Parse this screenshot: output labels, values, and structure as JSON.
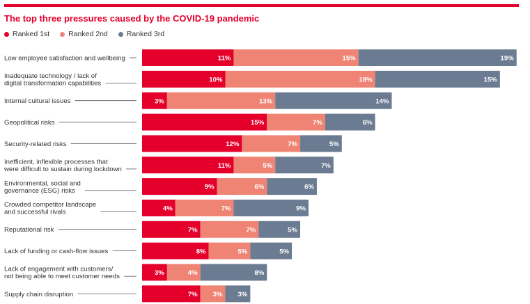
{
  "title": "The top three pressures caused by the COVID-19 pandemic",
  "colors": {
    "accent": "#e4002b"
  },
  "chart_data": {
    "type": "bar",
    "orientation": "horizontal",
    "stacked": true,
    "title": "The top three pressures caused by the COVID-19 pandemic",
    "legend_position": "top-left",
    "grid": false,
    "categories": [
      [
        "Low employee satisfaction and wellbeing"
      ],
      [
        "Inadequate technology / lack of",
        "digital transformation capabilities"
      ],
      [
        "Internal cultural issues"
      ],
      [
        "Geopolitical risks"
      ],
      [
        "Security-related risks"
      ],
      [
        "Inefficient, inflexible processes that",
        "were difficult to sustain during lockdown"
      ],
      [
        "Environmental, social and",
        "governance (ESG) risks"
      ],
      [
        "Crowded competitor landscape",
        "and successful rivals"
      ],
      [
        "Reputational risk"
      ],
      [
        "Lack of funding or cash-flow issues"
      ],
      [
        "Lack of engagement with customers/",
        "not being able to meet customer needs"
      ],
      [
        "Supply chain disruption"
      ]
    ],
    "series": [
      {
        "name": "Ranked 1st",
        "color": "#e4002b",
        "values": [
          11,
          10,
          3,
          15,
          12,
          11,
          9,
          4,
          7,
          8,
          3,
          7
        ]
      },
      {
        "name": "Ranked 2nd",
        "color": "#ef8475",
        "values": [
          15,
          18,
          13,
          7,
          7,
          5,
          6,
          7,
          7,
          5,
          4,
          3
        ]
      },
      {
        "name": "Ranked 3rd",
        "color": "#6b7b92",
        "values": [
          19,
          15,
          14,
          6,
          5,
          7,
          6,
          9,
          5,
          5,
          8,
          3
        ]
      }
    ],
    "value_suffix": "%"
  }
}
